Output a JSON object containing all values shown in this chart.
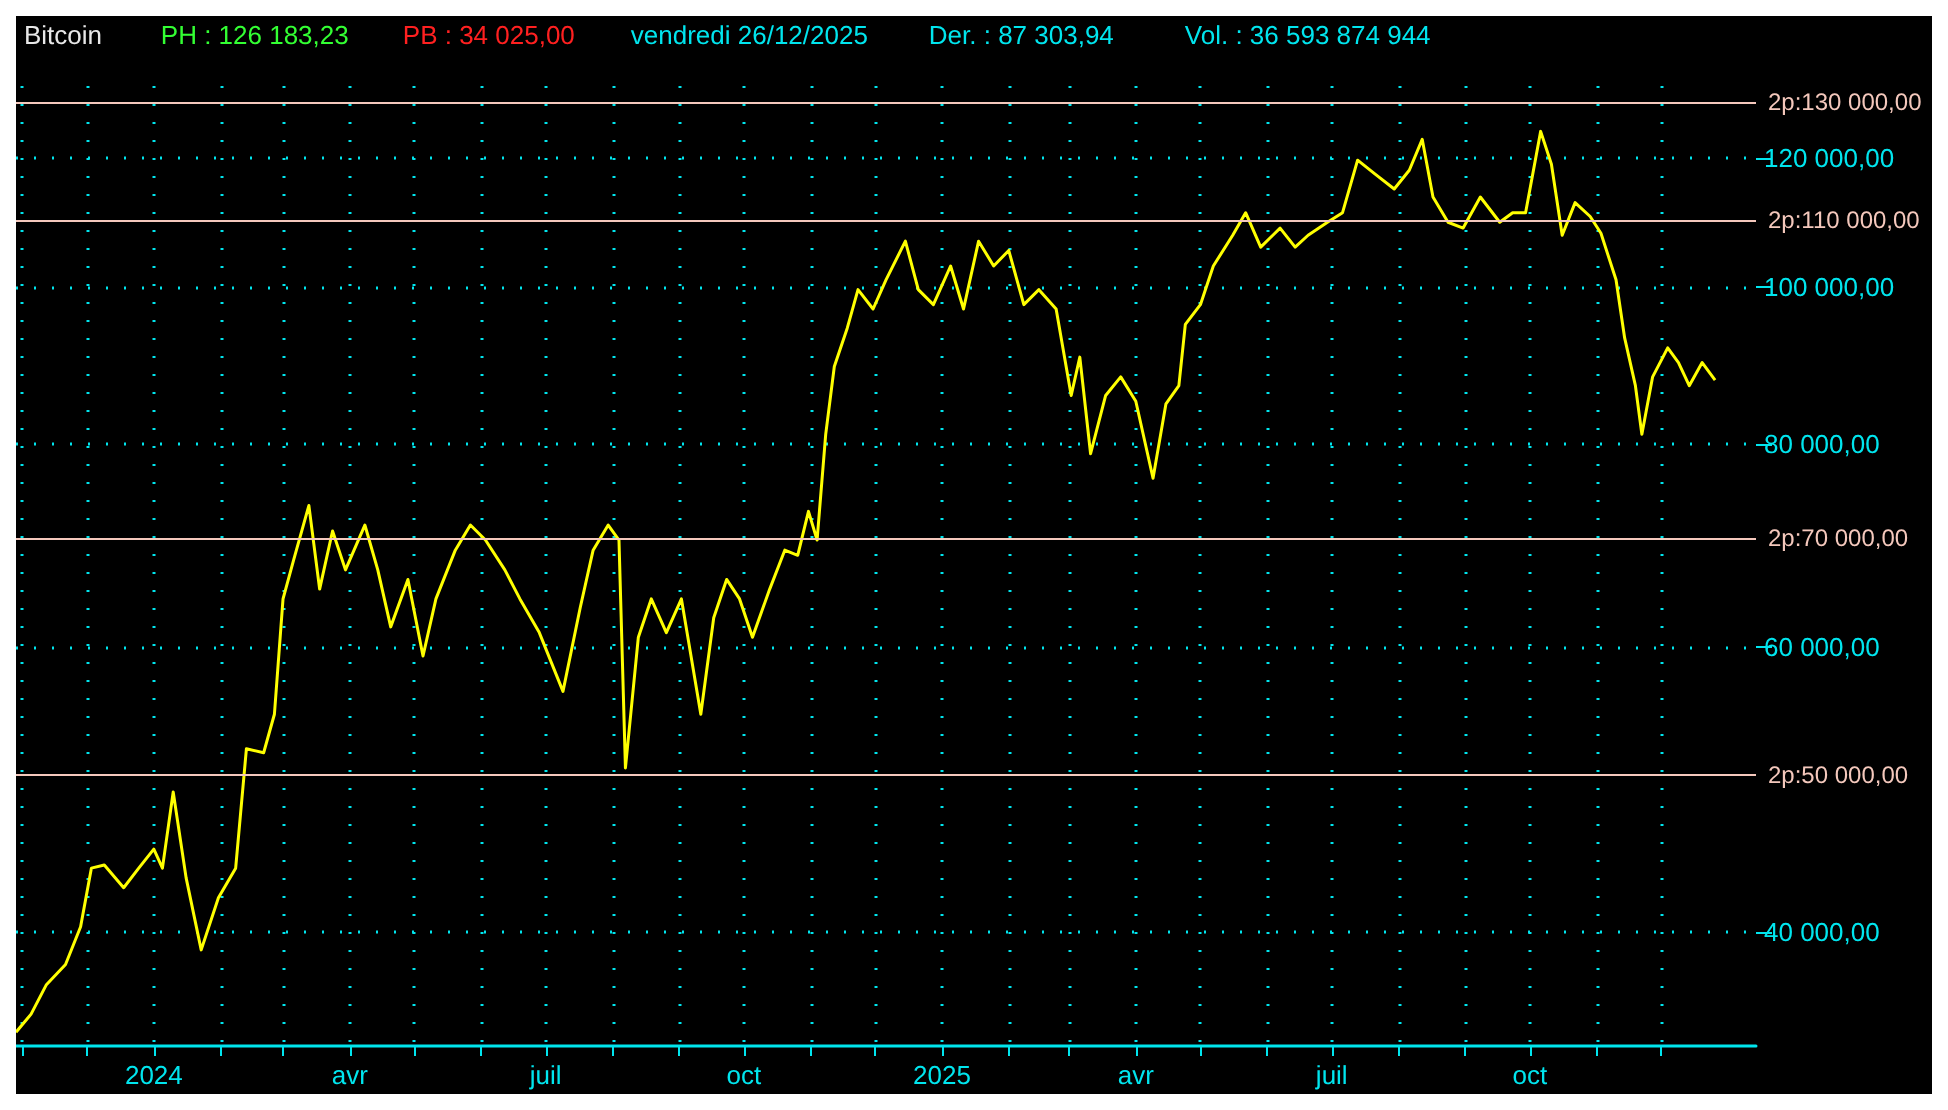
{
  "chart_data": {
    "type": "line",
    "title": "Bitcoin",
    "annotations": [
      "PH : 126 183,23",
      "PB : 34 025,00",
      "vendredi 26/12/2025",
      "Der. : 87 303,94",
      "Vol. : 36 593 874 944"
    ],
    "x": [
      "2023-10-29",
      "2023-11-05",
      "2023-11-12",
      "2023-11-21",
      "2023-11-28",
      "2023-12-03",
      "2023-12-09",
      "2023-12-18",
      "2023-12-25",
      "2024-01-01",
      "2024-01-05",
      "2024-01-10",
      "2024-01-16",
      "2024-01-23",
      "2024-01-31",
      "2024-02-08",
      "2024-02-13",
      "2024-02-21",
      "2024-02-26",
      "2024-03-01",
      "2024-03-06",
      "2024-03-13",
      "2024-03-18",
      "2024-03-24",
      "2024-03-30",
      "2024-04-08",
      "2024-04-14",
      "2024-04-20",
      "2024-04-28",
      "2024-05-05",
      "2024-05-11",
      "2024-05-20",
      "2024-05-27",
      "2024-06-03",
      "2024-06-12",
      "2024-06-19",
      "2024-06-28",
      "2024-07-09",
      "2024-07-17",
      "2024-07-23",
      "2024-07-30",
      "2024-08-04",
      "2024-08-07",
      "2024-08-13",
      "2024-08-19",
      "2024-08-26",
      "2024-09-02",
      "2024-09-11",
      "2024-09-17",
      "2024-09-23",
      "2024-09-29",
      "2024-10-05",
      "2024-10-13",
      "2024-10-20",
      "2024-10-26",
      "2024-10-31",
      "2024-11-04",
      "2024-11-08",
      "2024-11-12",
      "2024-11-18",
      "2024-11-23",
      "2024-11-30",
      "2024-12-06",
      "2024-12-15",
      "2024-12-21",
      "2024-12-28",
      "2025-01-05",
      "2025-01-11",
      "2025-01-18",
      "2025-01-25",
      "2025-02-01",
      "2025-02-08",
      "2025-02-15",
      "2025-02-23",
      "2025-03-02",
      "2025-03-06",
      "2025-03-11",
      "2025-03-18",
      "2025-03-25",
      "2025-04-01",
      "2025-04-09",
      "2025-04-15",
      "2025-04-21",
      "2025-04-24",
      "2025-05-01",
      "2025-05-07",
      "2025-05-16",
      "2025-05-22",
      "2025-05-29",
      "2025-06-07",
      "2025-06-14",
      "2025-06-20",
      "2025-06-29",
      "2025-07-06",
      "2025-07-13",
      "2025-07-21",
      "2025-07-30",
      "2025-08-06",
      "2025-08-12",
      "2025-08-17",
      "2025-08-24",
      "2025-08-31",
      "2025-09-08",
      "2025-09-17",
      "2025-09-23",
      "2025-09-29",
      "2025-10-06",
      "2025-10-11",
      "2025-10-16",
      "2025-10-22",
      "2025-10-29",
      "2025-11-03",
      "2025-11-10",
      "2025-11-14",
      "2025-11-19",
      "2025-11-22",
      "2025-11-27",
      "2025-12-04",
      "2025-12-09",
      "2025-12-14",
      "2025-12-20",
      "2025-12-26"
    ],
    "series": [
      {
        "color": "#ffff00",
        "values": [
          34700,
          35600,
          37100,
          38200,
          40300,
          43800,
          44000,
          42600,
          43800,
          45000,
          43800,
          48800,
          43200,
          39000,
          42000,
          43800,
          51900,
          51600,
          54500,
          64200,
          67900,
          73300,
          65100,
          70700,
          66900,
          71300,
          66900,
          61700,
          66000,
          59200,
          64200,
          68800,
          71300,
          69800,
          66900,
          64200,
          61200,
          56300,
          63400,
          68800,
          71300,
          69800,
          50500,
          60800,
          64200,
          61200,
          64200,
          54500,
          62500,
          66000,
          64200,
          60800,
          65100,
          68800,
          68300,
          72700,
          69800,
          81100,
          89300,
          94300,
          99600,
          96900,
          101000,
          106700,
          99600,
          97500,
          103000,
          96900,
          106700,
          103000,
          105300,
          97500,
          99600,
          96900,
          85700,
          90500,
          78900,
          85700,
          88000,
          85000,
          76200,
          84700,
          86900,
          94800,
          97500,
          103000,
          107600,
          111100,
          105800,
          108700,
          105800,
          107600,
          109600,
          111100,
          119700,
          117400,
          114900,
          118000,
          123300,
          113600,
          109600,
          108700,
          113600,
          109600,
          111100,
          111100,
          124700,
          119000,
          107600,
          112700,
          110500,
          107900,
          101000,
          93000,
          86900,
          81100,
          88000,
          91700,
          89800,
          86900,
          89800,
          87600
        ]
      }
    ],
    "xlim": [
      "2023-10-29",
      "2026-01-14"
    ],
    "xticks": [
      {
        "value": "2023-11-01",
        "label": null
      },
      {
        "value": "2023-12-01",
        "label": null
      },
      {
        "value": "2024-01-01",
        "label": "2024"
      },
      {
        "value": "2024-02-01",
        "label": null
      },
      {
        "value": "2024-03-01",
        "label": null
      },
      {
        "value": "2024-04-01",
        "label": "avr"
      },
      {
        "value": "2024-05-01",
        "label": null
      },
      {
        "value": "2024-06-01",
        "label": null
      },
      {
        "value": "2024-07-01",
        "label": "juil"
      },
      {
        "value": "2024-08-01",
        "label": null
      },
      {
        "value": "2024-09-01",
        "label": null
      },
      {
        "value": "2024-10-01",
        "label": "oct"
      },
      {
        "value": "2024-11-01",
        "label": null
      },
      {
        "value": "2024-12-01",
        "label": null
      },
      {
        "value": "2025-01-01",
        "label": "2025"
      },
      {
        "value": "2025-02-01",
        "label": null
      },
      {
        "value": "2025-03-01",
        "label": null
      },
      {
        "value": "2025-04-01",
        "label": "avr"
      },
      {
        "value": "2025-05-01",
        "label": null
      },
      {
        "value": "2025-06-01",
        "label": null
      },
      {
        "value": "2025-07-01",
        "label": "juil"
      },
      {
        "value": "2025-08-01",
        "label": null
      },
      {
        "value": "2025-09-01",
        "label": null
      },
      {
        "value": "2025-10-01",
        "label": "oct"
      },
      {
        "value": "2025-11-01",
        "label": null
      },
      {
        "value": "2025-12-01",
        "label": null
      }
    ],
    "ylim": [
      34025,
      133000
    ],
    "yticks": [
      {
        "value": 40000,
        "label": "40 000,00"
      },
      {
        "value": 60000,
        "label": "60 000,00"
      },
      {
        "value": 80000,
        "label": "80 000,00"
      },
      {
        "value": 100000,
        "label": "100 000,00"
      },
      {
        "value": 120000,
        "label": "120 000,00"
      }
    ],
    "log": "y",
    "grid": true,
    "ref_lines": [
      {
        "axis": "y",
        "value": 130000,
        "label": "2p:130 000,00",
        "color": "#f4c8bc"
      },
      {
        "axis": "y",
        "value": 110000,
        "label": "2p:110 000,00",
        "color": "#f4c8bc"
      },
      {
        "axis": "y",
        "value": 70000,
        "label": "2p:70 000,00",
        "color": "#f4c8bc"
      },
      {
        "axis": "y",
        "value": 50000,
        "label": "2p:50 000,00",
        "color": "#f4c8bc"
      }
    ]
  }
}
